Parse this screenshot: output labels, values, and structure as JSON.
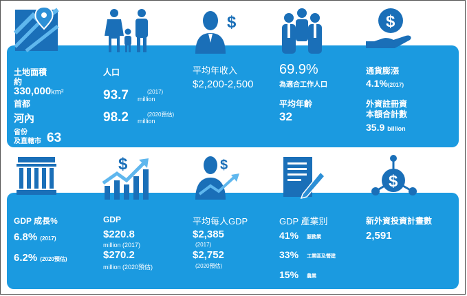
{
  "colors": {
    "band": "#1b9ae0",
    "icon_dark": "#1a6fb8",
    "icon_mid": "#2c8fd6",
    "accent": "#3aa9ec"
  },
  "icons": [
    "map-pin-icon",
    "family-icon",
    "person-dollar-icon",
    "workers-icon",
    "dollar-hand-icon",
    "building-icon",
    "chart-dollar-icon",
    "person-chart-icon",
    "document-pen-icon",
    "network-dollar-icon"
  ],
  "land": {
    "label": "土地面積",
    "approx": "約",
    "area": "330,000",
    "area_unit": "km²",
    "capital_label": "首都",
    "capital": "河內",
    "prov_label1": "省份",
    "prov_label2": "及直轄市",
    "prov_count": "63"
  },
  "population": {
    "label": "人口",
    "v1": "93.7",
    "v1_note": "(2017)",
    "v1_unit": "million",
    "v2": "98.2",
    "v2_note": "(2020預估)",
    "v2_unit": "million"
  },
  "income": {
    "label": "平均年收入",
    "value": "$2,200-2,500"
  },
  "workforce": {
    "pct": "69.9%",
    "pct_label": "為適合工作人口",
    "age_label": "平均年齡",
    "age": "32"
  },
  "inflation": {
    "label": "通貨膨漲",
    "value": "4.1%",
    "note": "(2017)",
    "fdi_label1": "外資註冊資",
    "fdi_label2": "本額合計數",
    "fdi_value": "35.9",
    "fdi_unit": "billion"
  },
  "gdp_growth": {
    "label": "GDP 成長%",
    "v1": "6.8%",
    "v1_note": "(2017)",
    "v2": "6.2%",
    "v2_note": "(2020預估)"
  },
  "gdp": {
    "label": "GDP",
    "v1": "$220.8",
    "v1_note": "million (2017)",
    "v2": "$270.2",
    "v2_note": "million (2020預估)"
  },
  "gdp_pc": {
    "label": "平均每人GDP",
    "v1": "$2,385",
    "v1_note": "(2017)",
    "v2": "$2,752",
    "v2_note": "(2020預估)"
  },
  "sectors": {
    "label": "GDP 產業別",
    "items": [
      {
        "pct": "41%",
        "name": "服務業"
      },
      {
        "pct": "33%",
        "name": "工業區及營建"
      },
      {
        "pct": "15%",
        "name": "農業"
      }
    ]
  },
  "fdi_projects": {
    "label": "新外資投資計畫數",
    "value": "2,591"
  }
}
